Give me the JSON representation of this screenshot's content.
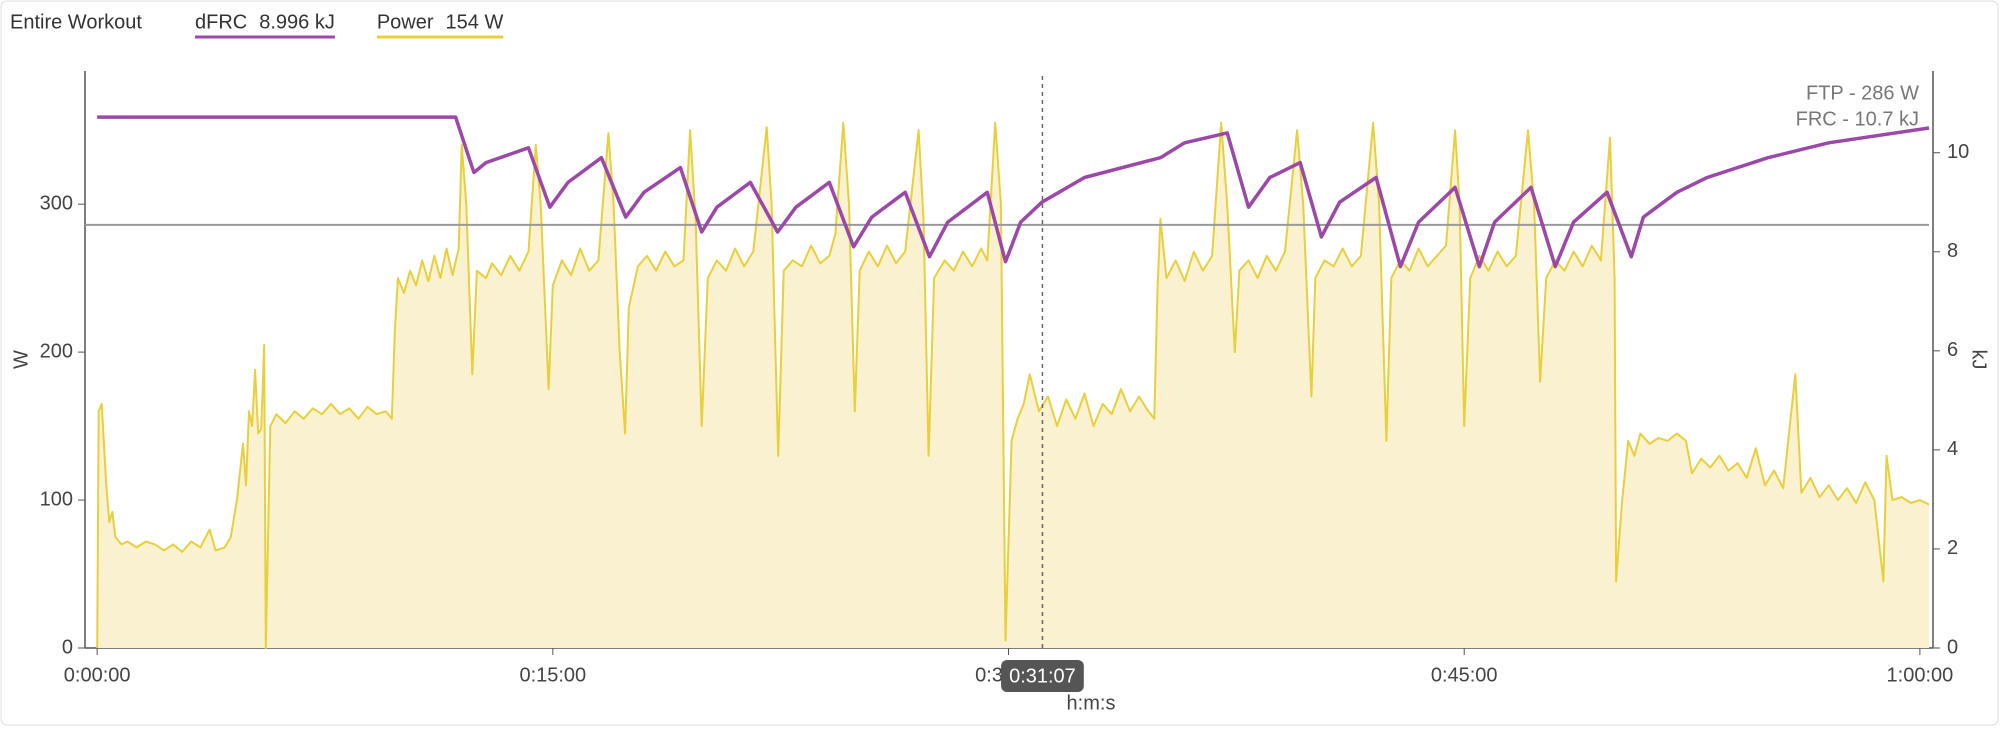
{
  "chart_data": {
    "type": "line",
    "range_label": "Entire Workout",
    "xlabel": "h:m:s",
    "ylabel": "W",
    "y2label": "kJ",
    "xlim": [
      -0.4,
      60.3
    ],
    "ylim": [
      0,
      390
    ],
    "y2lim": [
      0,
      11.65
    ],
    "xticks": [
      {
        "value": 0,
        "label": "0:00:00"
      },
      {
        "value": 15,
        "label": "0:15:00"
      },
      {
        "value": 30,
        "label": "0:30:00"
      },
      {
        "value": 45,
        "label": "0:45:00"
      },
      {
        "value": 60,
        "label": "1:00:00"
      }
    ],
    "yticks": [
      0,
      100,
      200,
      300
    ],
    "y2ticks": [
      0,
      2,
      4,
      6,
      8,
      10
    ],
    "reference_line": {
      "value": 286,
      "label": "FTP - 286 W"
    },
    "annotation": "FRC - 10.7 kJ",
    "cursor": {
      "value": 31.117,
      "label": "0:31:07"
    },
    "series": [
      {
        "name": "dFRC",
        "readout": "8.996 kJ",
        "color": "#9b48a8",
        "axis": "y2",
        "fill": false,
        "x": [
          0,
          11.8,
          12.4,
          12.8,
          14.2,
          14.9,
          15.5,
          16.6,
          17.4,
          18,
          19.2,
          19.9,
          20.4,
          21.5,
          22.4,
          23,
          24.1,
          24.9,
          25.5,
          26.6,
          27.4,
          28,
          29.3,
          29.9,
          30.4,
          31.1,
          32.5,
          35,
          35.8,
          37.2,
          37.9,
          38.6,
          39.6,
          40.3,
          40.9,
          42.1,
          42.9,
          43.5,
          44.7,
          45.5,
          46,
          47.2,
          48,
          48.6,
          49.7,
          50.5,
          50.9,
          52,
          53,
          55,
          57,
          60.3
        ],
        "values": [
          10.72,
          10.72,
          9.6,
          9.8,
          10.1,
          8.9,
          9.4,
          9.9,
          8.7,
          9.2,
          9.7,
          8.4,
          8.9,
          9.4,
          8.4,
          8.9,
          9.4,
          8.1,
          8.7,
          9.2,
          7.9,
          8.6,
          9.2,
          7.8,
          8.6,
          9.0,
          9.5,
          9.9,
          10.2,
          10.4,
          8.9,
          9.5,
          9.8,
          8.3,
          9.0,
          9.5,
          7.7,
          8.6,
          9.3,
          7.7,
          8.6,
          9.3,
          7.7,
          8.6,
          9.2,
          7.9,
          8.7,
          9.2,
          9.5,
          9.9,
          10.2,
          10.5
        ]
      },
      {
        "name": "Power",
        "readout": "154 W",
        "color": "#e8cf3c",
        "fill_color": "#f9f1cf",
        "axis": "y",
        "fill": true,
        "x": [
          0,
          0.05,
          0.15,
          0.3,
          0.4,
          0.5,
          0.6,
          0.8,
          1,
          1.3,
          1.6,
          1.9,
          2.2,
          2.5,
          2.8,
          3.1,
          3.4,
          3.7,
          3.9,
          4.2,
          4.4,
          4.6,
          4.8,
          4.9,
          5.0,
          5.1,
          5.2,
          5.3,
          5.4,
          5.5,
          5.55,
          5.7,
          5.9,
          6.2,
          6.5,
          6.8,
          7.1,
          7.4,
          7.7,
          8.0,
          8.3,
          8.6,
          8.9,
          9.2,
          9.5,
          9.7,
          9.8,
          9.9,
          10.1,
          10.3,
          10.5,
          10.7,
          10.9,
          11.1,
          11.3,
          11.5,
          11.7,
          11.9,
          12.0,
          12.15,
          12.35,
          12.5,
          12.8,
          13.0,
          13.3,
          13.6,
          13.9,
          14.2,
          14.44,
          14.6,
          14.86,
          15.0,
          15.3,
          15.6,
          15.9,
          16.2,
          16.5,
          16.83,
          17.0,
          17.2,
          17.38,
          17.5,
          17.8,
          18.1,
          18.4,
          18.7,
          19.0,
          19.3,
          19.52,
          19.7,
          19.9,
          20.1,
          20.4,
          20.7,
          21.0,
          21.3,
          21.6,
          22.04,
          22.2,
          22.42,
          22.6,
          22.9,
          23.2,
          23.5,
          23.8,
          24.1,
          24.3,
          24.56,
          24.75,
          24.94,
          25.1,
          25.4,
          25.7,
          26.0,
          26.3,
          26.6,
          27.04,
          27.2,
          27.37,
          27.55,
          27.9,
          28.2,
          28.5,
          28.8,
          29.1,
          29.3,
          29.56,
          29.75,
          29.9,
          30.1,
          30.3,
          30.5,
          30.7,
          31.0,
          31.3,
          31.6,
          31.9,
          32.2,
          32.5,
          32.8,
          33.1,
          33.4,
          33.7,
          34.0,
          34.3,
          34.6,
          34.8,
          34.9,
          35.0,
          35.2,
          35.5,
          35.8,
          36.1,
          36.4,
          36.7,
          37.0,
          37.2,
          37.45,
          37.6,
          37.9,
          38.2,
          38.5,
          38.8,
          39.1,
          39.5,
          39.7,
          39.97,
          40.1,
          40.4,
          40.7,
          41.0,
          41.3,
          41.6,
          42.0,
          42.2,
          42.44,
          42.6,
          42.9,
          43.2,
          43.5,
          43.8,
          44.1,
          44.4,
          44.7,
          44.85,
          45.0,
          45.2,
          45.5,
          45.8,
          46.1,
          46.4,
          46.7,
          47.1,
          47.3,
          47.5,
          47.7,
          48.0,
          48.3,
          48.6,
          48.9,
          49.2,
          49.5,
          49.8,
          49.95,
          50.0,
          50.2,
          50.4,
          50.6,
          50.8,
          51.1,
          51.4,
          51.7,
          52.0,
          52.3,
          52.5,
          52.8,
          53.1,
          53.4,
          53.7,
          54.0,
          54.3,
          54.6,
          54.9,
          55.2,
          55.5,
          55.9,
          56.1,
          56.4,
          56.7,
          57.0,
          57.3,
          57.6,
          57.9,
          58.2,
          58.5,
          58.8,
          58.9,
          59.1,
          59.4,
          59.7,
          60.0,
          60.3
        ],
        "values": [
          0,
          160,
          165,
          110,
          85,
          92,
          75,
          70,
          72,
          68,
          72,
          70,
          66,
          70,
          65,
          72,
          68,
          80,
          66,
          68,
          75,
          100,
          138,
          110,
          160,
          150,
          188,
          145,
          148,
          205,
          0,
          150,
          158,
          152,
          160,
          155,
          162,
          158,
          165,
          158,
          162,
          155,
          163,
          158,
          160,
          155,
          215,
          250,
          240,
          255,
          245,
          262,
          248,
          265,
          250,
          270,
          252,
          270,
          340,
          300,
          185,
          255,
          250,
          260,
          252,
          265,
          255,
          268,
          340,
          300,
          175,
          245,
          262,
          252,
          270,
          255,
          262,
          348,
          300,
          200,
          145,
          230,
          258,
          265,
          255,
          268,
          258,
          262,
          350,
          290,
          150,
          250,
          262,
          255,
          270,
          258,
          268,
          352,
          300,
          130,
          255,
          262,
          258,
          272,
          260,
          265,
          280,
          355,
          300,
          160,
          255,
          268,
          258,
          272,
          260,
          268,
          350,
          290,
          130,
          250,
          262,
          255,
          268,
          258,
          270,
          262,
          355,
          300,
          5,
          140,
          155,
          165,
          185,
          160,
          170,
          150,
          168,
          155,
          172,
          150,
          165,
          158,
          175,
          160,
          170,
          160,
          155,
          240,
          290,
          250,
          262,
          248,
          268,
          255,
          265,
          355,
          300,
          200,
          255,
          262,
          250,
          265,
          255,
          268,
          350,
          300,
          170,
          250,
          262,
          258,
          270,
          258,
          265,
          355,
          300,
          140,
          250,
          262,
          255,
          270,
          258,
          265,
          272,
          350,
          300,
          150,
          250,
          265,
          255,
          268,
          258,
          265,
          350,
          300,
          180,
          250,
          262,
          255,
          268,
          258,
          272,
          262,
          345,
          250,
          45,
          100,
          140,
          130,
          145,
          138,
          142,
          140,
          145,
          140,
          118,
          128,
          122,
          130,
          120,
          125,
          115,
          135,
          110,
          120,
          108,
          185,
          105,
          115,
          102,
          110,
          100,
          108,
          98,
          112,
          100,
          45,
          130,
          100,
          102,
          98,
          100,
          97
        ]
      }
    ]
  }
}
